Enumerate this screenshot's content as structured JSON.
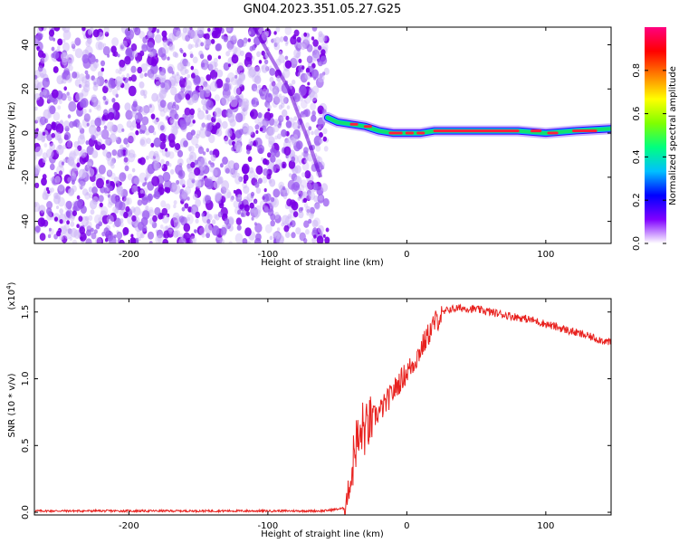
{
  "title": "GN04.2023.351.05.27.G25",
  "chart_data": [
    {
      "type": "heatmap",
      "name": "spectrogram",
      "xlabel": "Height of straight line (km)",
      "ylabel": "Frequency (Hz)",
      "xlim": [
        -268,
        147
      ],
      "ylim": [
        -50,
        48
      ],
      "x_ticks": [
        -200,
        -100,
        0,
        100
      ],
      "y_ticks": [
        -40,
        -20,
        0,
        20,
        40
      ],
      "noise_region_x": [
        -268,
        -57
      ],
      "signal_track": [
        {
          "x": -57,
          "y": 7
        },
        {
          "x": -50,
          "y": 5
        },
        {
          "x": -40,
          "y": 4
        },
        {
          "x": -30,
          "y": 3
        },
        {
          "x": -20,
          "y": 1
        },
        {
          "x": -10,
          "y": 0
        },
        {
          "x": 0,
          "y": 0
        },
        {
          "x": 10,
          "y": 0
        },
        {
          "x": 20,
          "y": 1
        },
        {
          "x": 40,
          "y": 1
        },
        {
          "x": 60,
          "y": 1
        },
        {
          "x": 80,
          "y": 1
        },
        {
          "x": 100,
          "y": 0
        },
        {
          "x": 120,
          "y": 1
        },
        {
          "x": 147,
          "y": 2
        }
      ],
      "colorbar": {
        "label": "Normalized spectral amplitude",
        "ticks": [
          "0.0",
          "0.2",
          "0.4",
          "0.6",
          "0.8"
        ],
        "range": [
          0,
          1
        ],
        "colors": [
          "#ffffff",
          "#8000ff",
          "#0000ff",
          "#00c0ff",
          "#00ff80",
          "#80ff00",
          "#ffff00",
          "#ff8000",
          "#ff0000",
          "#ff0080"
        ]
      }
    },
    {
      "type": "line",
      "name": "snr",
      "xlabel": "Height of straight line (km)",
      "ylabel": "SNR (10 * v/v)",
      "y_multiplier": "(x10",
      "y_multiplier_exp": "4",
      "xlim": [
        -268,
        147
      ],
      "ylim": [
        -0.02,
        1.6
      ],
      "x_ticks": [
        -200,
        -100,
        0,
        100
      ],
      "y_ticks": [
        "0.0",
        "0.5",
        "1.0",
        "1.5"
      ],
      "color": "#e8221f",
      "series": [
        {
          "x": [
            -268,
            -200,
            -150,
            -100,
            -60,
            -45,
            -40,
            -38,
            -36,
            -34,
            -32,
            -30,
            -28,
            -25,
            -20,
            -15,
            -10,
            -5,
            0,
            5,
            10,
            15,
            20,
            25,
            30,
            40,
            50,
            60,
            70,
            80,
            90,
            100,
            110,
            120,
            130,
            140,
            147
          ],
          "y": [
            0.01,
            0.01,
            0.01,
            0.01,
            0.01,
            0.03,
            0.25,
            0.45,
            0.55,
            0.5,
            0.65,
            0.6,
            0.65,
            0.7,
            0.75,
            0.82,
            0.9,
            0.98,
            1.05,
            1.12,
            1.22,
            1.32,
            1.42,
            1.48,
            1.52,
            1.53,
            1.52,
            1.5,
            1.48,
            1.46,
            1.44,
            1.41,
            1.38,
            1.35,
            1.32,
            1.29,
            1.27
          ]
        }
      ]
    }
  ]
}
